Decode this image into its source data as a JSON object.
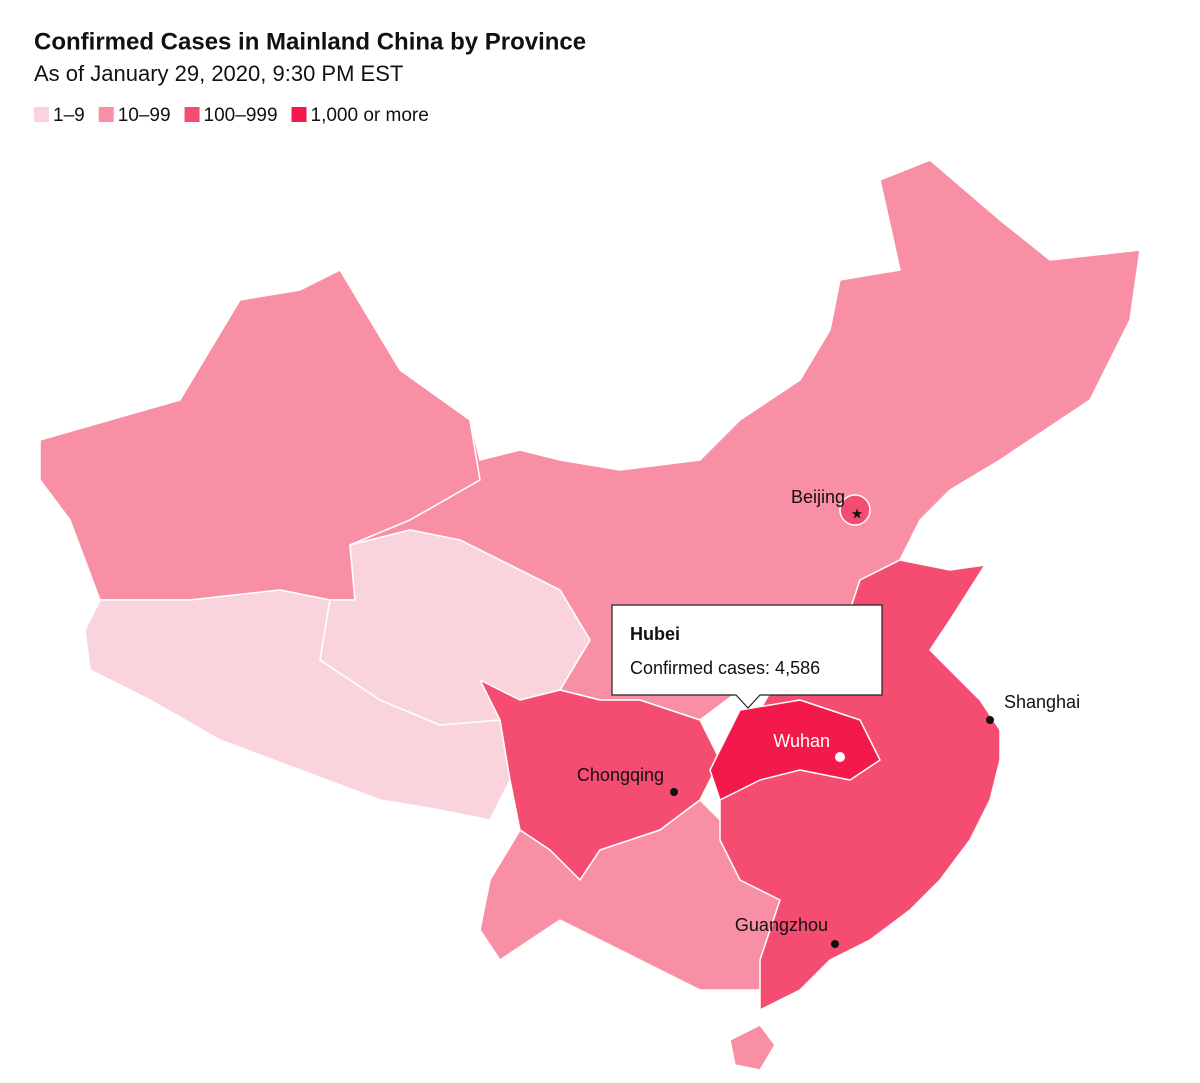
{
  "header": {
    "title": "Confirmed Cases in Mainland China by Province",
    "subtitle": "As of January 29, 2020, 9:30 PM EST"
  },
  "legend": [
    {
      "label": "1–9",
      "color": "#fad4dc"
    },
    {
      "label": "10–99",
      "color": "#f98fa5"
    },
    {
      "label": "100–999",
      "color": "#f54c72"
    },
    {
      "label": "1,000 or more",
      "color": "#f3194a"
    }
  ],
  "cities": [
    {
      "label": "Beijing"
    },
    {
      "label": "Shanghai"
    },
    {
      "label": "Wuhan"
    },
    {
      "label": "Chongqing"
    },
    {
      "label": "Guangzhou"
    }
  ],
  "tooltip": {
    "title": "Hubei",
    "text": "Confirmed cases: 4,586"
  }
}
